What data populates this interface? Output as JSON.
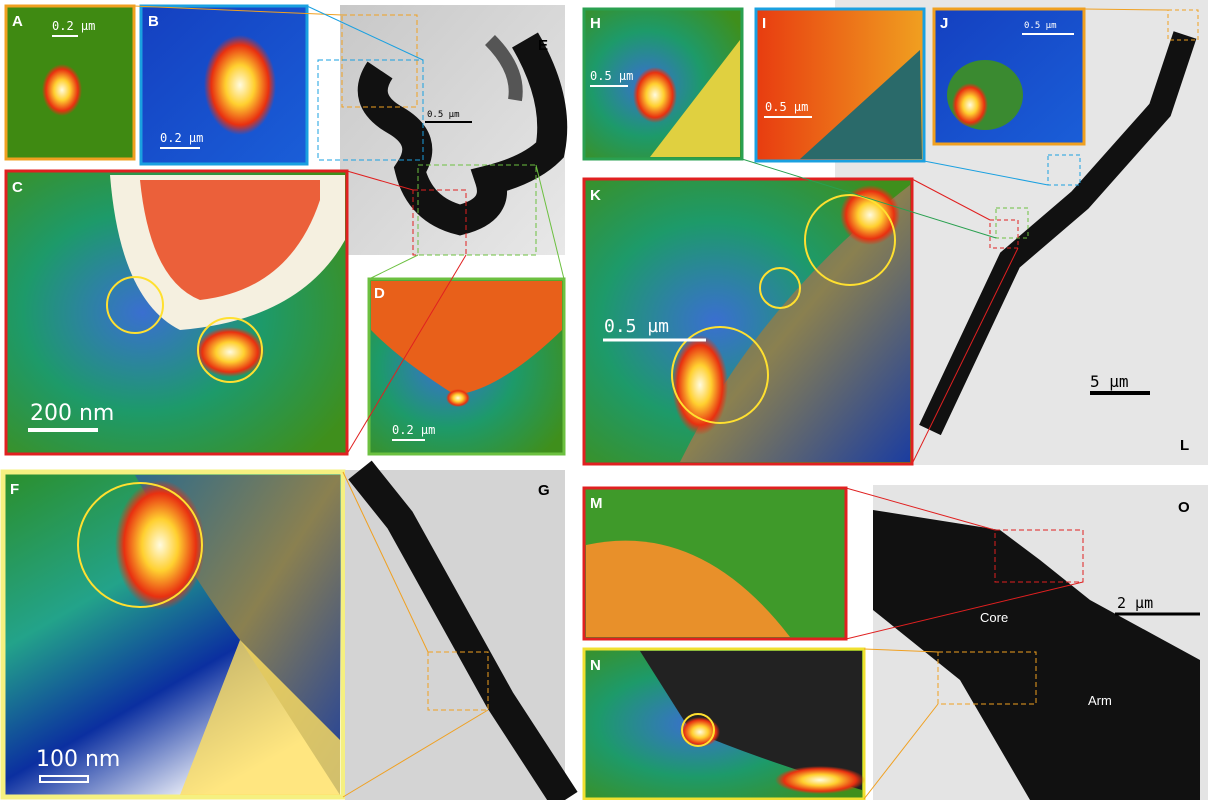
{
  "panels": [
    {
      "label": "A",
      "scale_bar": "0.2 µm"
    },
    {
      "label": "B",
      "scale_bar": "0.2 µm"
    },
    {
      "label": "C",
      "scale_bar": "200 nm"
    },
    {
      "label": "D",
      "scale_bar": "0.2 µm"
    },
    {
      "label": "E",
      "scale_bar": "0.5 µm"
    },
    {
      "label": "F",
      "scale_bar": "100 nm"
    },
    {
      "label": "G"
    },
    {
      "label": "H",
      "scale_bar": "0.5 µm"
    },
    {
      "label": "I",
      "scale_bar": "0.5 µm"
    },
    {
      "label": "J",
      "scale_bar": "0.5 µm"
    },
    {
      "label": "K",
      "scale_bar": "0.5 µm"
    },
    {
      "label": "L",
      "scale_bar": "5 µm"
    },
    {
      "label": "M"
    },
    {
      "label": "N"
    },
    {
      "label": "O",
      "scale_bar": "2 µm",
      "texts": [
        "Core",
        "Arm"
      ]
    }
  ]
}
